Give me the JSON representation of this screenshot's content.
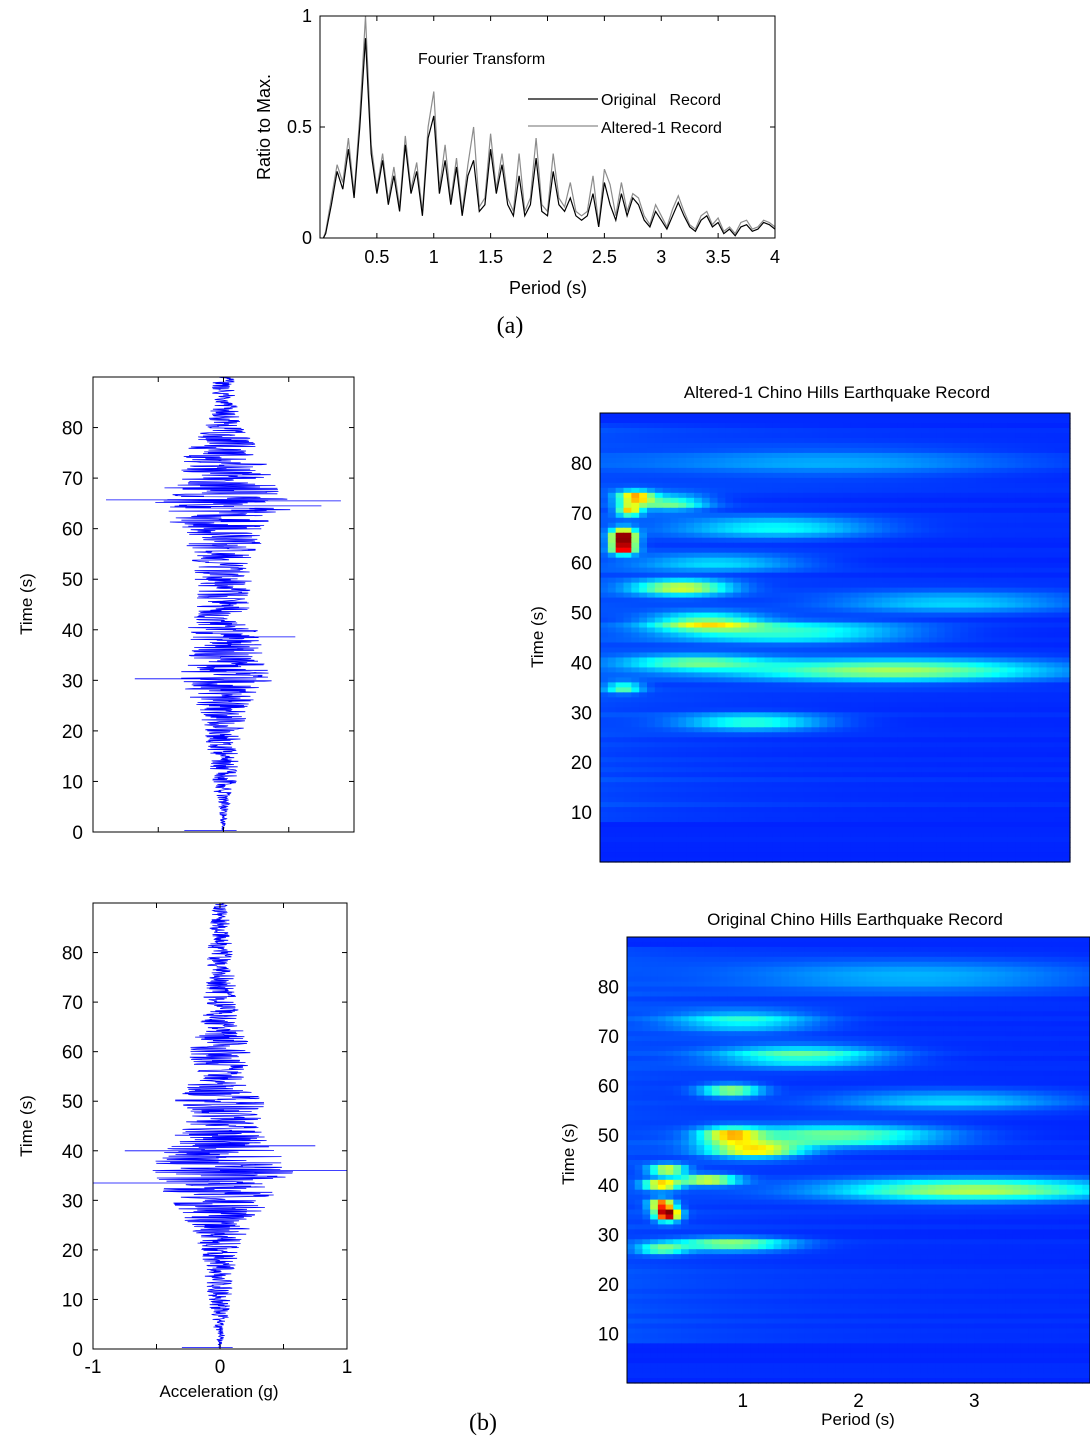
{
  "captions": {
    "a": "(a)",
    "b": "(b)"
  },
  "colors": {
    "original": "#000000",
    "altered": "#8c8c8c",
    "trace": "#0000ff",
    "map_bg": "#00008f"
  },
  "chart_data": [
    {
      "id": "fourier",
      "type": "line",
      "title": "Fourier Transform",
      "xlabel": "Period (s)",
      "ylabel": "Ratio to Max.",
      "xlim": [
        0,
        4
      ],
      "ylim": [
        0,
        1
      ],
      "xticks": [
        "0.5",
        "1",
        "1.5",
        "2",
        "2.5",
        "3",
        "3.5",
        "4"
      ],
      "yticks": [
        "0",
        "0.5",
        "1"
      ],
      "legend": "top-right",
      "x": [
        0.05,
        0.1,
        0.15,
        0.2,
        0.25,
        0.3,
        0.35,
        0.4,
        0.45,
        0.5,
        0.55,
        0.6,
        0.65,
        0.7,
        0.75,
        0.8,
        0.85,
        0.9,
        0.95,
        1.0,
        1.05,
        1.1,
        1.15,
        1.2,
        1.25,
        1.3,
        1.35,
        1.4,
        1.45,
        1.5,
        1.55,
        1.6,
        1.65,
        1.7,
        1.75,
        1.8,
        1.85,
        1.9,
        1.95,
        2.0,
        2.05,
        2.1,
        2.15,
        2.2,
        2.25,
        2.3,
        2.35,
        2.4,
        2.45,
        2.5,
        2.55,
        2.6,
        2.65,
        2.7,
        2.75,
        2.8,
        2.85,
        2.9,
        2.95,
        3.0,
        3.05,
        3.1,
        3.15,
        3.2,
        3.25,
        3.3,
        3.35,
        3.4,
        3.45,
        3.5,
        3.55,
        3.6,
        3.65,
        3.7,
        3.75,
        3.8,
        3.85,
        3.9,
        3.95,
        4.0
      ],
      "series": [
        {
          "name": "Original   Record",
          "values": [
            0.02,
            0.15,
            0.3,
            0.22,
            0.4,
            0.18,
            0.5,
            0.9,
            0.38,
            0.2,
            0.35,
            0.15,
            0.28,
            0.12,
            0.42,
            0.2,
            0.3,
            0.1,
            0.45,
            0.55,
            0.2,
            0.35,
            0.15,
            0.32,
            0.1,
            0.28,
            0.35,
            0.12,
            0.15,
            0.4,
            0.2,
            0.33,
            0.15,
            0.1,
            0.28,
            0.1,
            0.15,
            0.36,
            0.12,
            0.1,
            0.3,
            0.15,
            0.12,
            0.18,
            0.1,
            0.08,
            0.1,
            0.2,
            0.05,
            0.25,
            0.15,
            0.08,
            0.2,
            0.1,
            0.18,
            0.15,
            0.08,
            0.05,
            0.12,
            0.08,
            0.04,
            0.1,
            0.16,
            0.1,
            0.05,
            0.03,
            0.08,
            0.1,
            0.05,
            0.07,
            0.02,
            0.04,
            0.01,
            0.05,
            0.06,
            0.03,
            0.04,
            0.07,
            0.06,
            0.04
          ]
        },
        {
          "name": "Altered-1 Record",
          "values": [
            0.03,
            0.18,
            0.33,
            0.25,
            0.45,
            0.2,
            0.55,
            1.0,
            0.42,
            0.22,
            0.38,
            0.17,
            0.32,
            0.14,
            0.46,
            0.22,
            0.34,
            0.12,
            0.5,
            0.66,
            0.22,
            0.42,
            0.17,
            0.36,
            0.12,
            0.33,
            0.5,
            0.14,
            0.18,
            0.47,
            0.22,
            0.38,
            0.18,
            0.12,
            0.38,
            0.12,
            0.18,
            0.45,
            0.15,
            0.12,
            0.38,
            0.18,
            0.14,
            0.25,
            0.12,
            0.1,
            0.12,
            0.28,
            0.06,
            0.31,
            0.24,
            0.1,
            0.25,
            0.12,
            0.2,
            0.18,
            0.1,
            0.06,
            0.15,
            0.1,
            0.05,
            0.13,
            0.19,
            0.12,
            0.06,
            0.04,
            0.1,
            0.12,
            0.06,
            0.09,
            0.03,
            0.05,
            0.02,
            0.07,
            0.08,
            0.04,
            0.05,
            0.08,
            0.07,
            0.05
          ]
        }
      ]
    },
    {
      "id": "altered_trace",
      "type": "line",
      "ylabel": "Time (s)",
      "xlim": [
        -1,
        1
      ],
      "ylim": [
        0,
        90
      ],
      "yticks": [
        "0",
        "10",
        "20",
        "30",
        "40",
        "50",
        "60",
        "70",
        "80"
      ],
      "envelope_t": [
        0,
        5,
        10,
        15,
        20,
        25,
        30,
        35,
        40,
        45,
        50,
        55,
        60,
        65,
        70,
        75,
        80,
        85,
        90
      ],
      "envelope_amp": [
        0.01,
        0.04,
        0.1,
        0.12,
        0.15,
        0.2,
        0.38,
        0.3,
        0.28,
        0.2,
        0.22,
        0.25,
        0.35,
        0.6,
        0.38,
        0.3,
        0.15,
        0.1,
        0.08
      ],
      "peaks": [
        {
          "t": 30.3,
          "a": -0.68
        },
        {
          "t": 38.6,
          "a": 0.55
        },
        {
          "t": 65.5,
          "a": 0.9
        },
        {
          "t": 65.7,
          "a": -0.9
        },
        {
          "t": 64.5,
          "a": 0.75
        }
      ]
    },
    {
      "id": "original_trace",
      "type": "line",
      "xlabel": "Acceleration (g)",
      "ylabel": "Time (s)",
      "xlim": [
        -1,
        1
      ],
      "ylim": [
        0,
        90
      ],
      "xticks": [
        "-1",
        "0",
        "1"
      ],
      "yticks": [
        "0",
        "10",
        "20",
        "30",
        "40",
        "50",
        "60",
        "70",
        "80"
      ],
      "envelope_t": [
        0,
        5,
        10,
        15,
        20,
        25,
        30,
        35,
        40,
        45,
        50,
        55,
        60,
        65,
        70,
        75,
        80,
        85,
        90
      ],
      "envelope_amp": [
        0.01,
        0.06,
        0.1,
        0.12,
        0.15,
        0.25,
        0.4,
        0.6,
        0.45,
        0.3,
        0.38,
        0.2,
        0.25,
        0.18,
        0.14,
        0.12,
        0.1,
        0.08,
        0.06
      ],
      "peaks": [
        {
          "t": 33.5,
          "a": -1.0
        },
        {
          "t": 36.0,
          "a": 1.0
        },
        {
          "t": 41.0,
          "a": 0.75
        },
        {
          "t": 40.0,
          "a": -0.75
        }
      ]
    },
    {
      "id": "altered_map",
      "type": "heatmap",
      "title": "Altered-1 Chino Hills Earthquake Record",
      "ylabel": "Time (s)",
      "xlim": [
        0,
        4
      ],
      "ylim": [
        0,
        90
      ],
      "yticks": [
        "10",
        "20",
        "30",
        "40",
        "50",
        "60",
        "70",
        "80"
      ],
      "blobs": [
        {
          "p": 0.2,
          "t": 65,
          "w": 0.1,
          "h": 1.6,
          "i": 1.0
        },
        {
          "p": 0.2,
          "t": 63,
          "w": 0.1,
          "h": 1.2,
          "i": 0.85
        },
        {
          "p": 0.3,
          "t": 73,
          "w": 0.15,
          "h": 1.2,
          "i": 0.65
        },
        {
          "p": 0.25,
          "t": 70.5,
          "w": 0.1,
          "h": 1.0,
          "i": 0.6
        },
        {
          "p": 0.6,
          "t": 72,
          "w": 0.3,
          "h": 1.5,
          "i": 0.35
        },
        {
          "p": 0.7,
          "t": 55,
          "w": 0.4,
          "h": 1.5,
          "i": 0.42
        },
        {
          "p": 0.9,
          "t": 48,
          "w": 0.45,
          "h": 1.8,
          "i": 0.4
        },
        {
          "p": 1.6,
          "t": 46,
          "w": 1.0,
          "h": 2.0,
          "i": 0.32
        },
        {
          "p": 2.5,
          "t": 38.5,
          "w": 1.3,
          "h": 2.2,
          "i": 0.38
        },
        {
          "p": 0.8,
          "t": 40,
          "w": 0.6,
          "h": 1.5,
          "i": 0.3
        },
        {
          "p": 1.3,
          "t": 28,
          "w": 0.6,
          "h": 1.5,
          "i": 0.32
        },
        {
          "p": 0.2,
          "t": 35,
          "w": 0.15,
          "h": 1.0,
          "i": 0.35
        },
        {
          "p": 1.5,
          "t": 67,
          "w": 0.8,
          "h": 2.0,
          "i": 0.22
        },
        {
          "p": 1.0,
          "t": 60,
          "w": 0.7,
          "h": 1.5,
          "i": 0.22
        },
        {
          "p": 3.0,
          "t": 52,
          "w": 1.0,
          "h": 2.0,
          "i": 0.18
        },
        {
          "p": 2.0,
          "t": 80,
          "w": 1.5,
          "h": 3.0,
          "i": 0.12
        }
      ]
    },
    {
      "id": "original_map",
      "type": "heatmap",
      "title": "Original Chino Hills Earthquake Record",
      "xlabel": "Period (s)",
      "ylabel": "Time (s)",
      "xlim": [
        0,
        4
      ],
      "ylim": [
        0,
        90
      ],
      "xticks": [
        "1",
        "2",
        "3"
      ],
      "yticks": [
        "10",
        "20",
        "30",
        "40",
        "50",
        "60",
        "70",
        "80"
      ],
      "blobs": [
        {
          "p": 0.35,
          "t": 34,
          "w": 0.1,
          "h": 1.3,
          "i": 1.0
        },
        {
          "p": 0.3,
          "t": 36,
          "w": 0.1,
          "h": 1.0,
          "i": 0.8
        },
        {
          "p": 0.3,
          "t": 40,
          "w": 0.15,
          "h": 1.0,
          "i": 0.62
        },
        {
          "p": 0.35,
          "t": 43,
          "w": 0.15,
          "h": 1.0,
          "i": 0.55
        },
        {
          "p": 0.7,
          "t": 41,
          "w": 0.25,
          "h": 1.0,
          "i": 0.52
        },
        {
          "p": 0.9,
          "t": 50,
          "w": 0.25,
          "h": 1.5,
          "i": 0.55
        },
        {
          "p": 1.1,
          "t": 47,
          "w": 0.4,
          "h": 1.5,
          "i": 0.5
        },
        {
          "p": 0.9,
          "t": 59,
          "w": 0.25,
          "h": 1.2,
          "i": 0.45
        },
        {
          "p": 1.8,
          "t": 50,
          "w": 0.9,
          "h": 2.0,
          "i": 0.4
        },
        {
          "p": 3.0,
          "t": 39,
          "w": 1.2,
          "h": 2.2,
          "i": 0.42
        },
        {
          "p": 0.9,
          "t": 28,
          "w": 0.5,
          "h": 1.3,
          "i": 0.38
        },
        {
          "p": 0.3,
          "t": 27,
          "w": 0.2,
          "h": 1.0,
          "i": 0.35
        },
        {
          "p": 1.5,
          "t": 66,
          "w": 0.7,
          "h": 2.0,
          "i": 0.32
        },
        {
          "p": 1.0,
          "t": 73,
          "w": 0.6,
          "h": 2.0,
          "i": 0.25
        },
        {
          "p": 2.8,
          "t": 57,
          "w": 1.0,
          "h": 2.0,
          "i": 0.2
        },
        {
          "p": 2.5,
          "t": 82,
          "w": 1.5,
          "h": 3.0,
          "i": 0.15
        }
      ]
    }
  ]
}
